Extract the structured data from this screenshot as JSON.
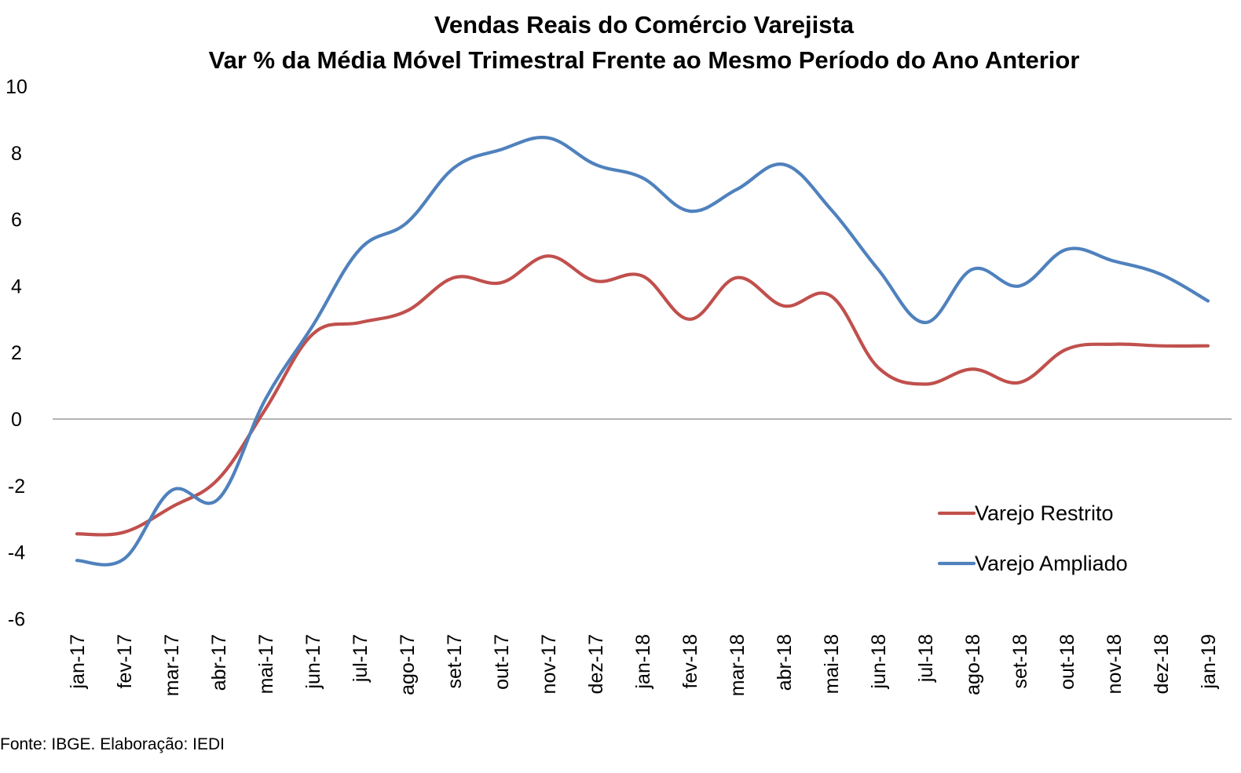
{
  "chart_data": {
    "type": "line",
    "title": "Vendas Reais do Comércio Varejista",
    "subtitle": "Var % da Média Móvel Trimestral Frente ao Mesmo Período do Ano Anterior",
    "xlabel": "",
    "ylabel": "",
    "ylim": [
      -6,
      10
    ],
    "yticks": [
      "10",
      "8",
      "6",
      "4",
      "2",
      "0",
      "-2",
      "-4",
      "-6"
    ],
    "grid": false,
    "legend_position": "right",
    "categories": [
      "jan-17",
      "fev-17",
      "mar-17",
      "abr-17",
      "mai-17",
      "jun-17",
      "jul-17",
      "ago-17",
      "set-17",
      "out-17",
      "nov-17",
      "dez-17",
      "jan-18",
      "fev-18",
      "mar-18",
      "abr-18",
      "mai-18",
      "jun-18",
      "jul-18",
      "ago-18",
      "set-18",
      "out-18",
      "nov-18",
      "dez-18",
      "jan-19"
    ],
    "series": [
      {
        "name": "Varejo Restrito",
        "color": "#C0504D",
        "values": [
          -3.45,
          -3.4,
          -2.65,
          -1.8,
          0.3,
          2.55,
          2.9,
          3.25,
          4.25,
          4.1,
          4.9,
          4.15,
          4.3,
          3.0,
          4.25,
          3.4,
          3.7,
          1.55,
          1.05,
          1.5,
          1.1,
          2.1,
          2.25,
          2.2,
          2.2
        ]
      },
      {
        "name": "Varejo Ampliado",
        "color": "#4F81BD",
        "values": [
          -4.25,
          -4.2,
          -2.15,
          -2.4,
          0.6,
          2.8,
          5.1,
          5.9,
          7.55,
          8.1,
          8.45,
          7.65,
          7.25,
          6.25,
          6.9,
          7.65,
          6.3,
          4.5,
          2.9,
          4.5,
          4.0,
          5.1,
          4.75,
          4.35,
          3.55
        ]
      }
    ]
  },
  "source": "Fonte: IBGE. Elaboração: IEDI"
}
